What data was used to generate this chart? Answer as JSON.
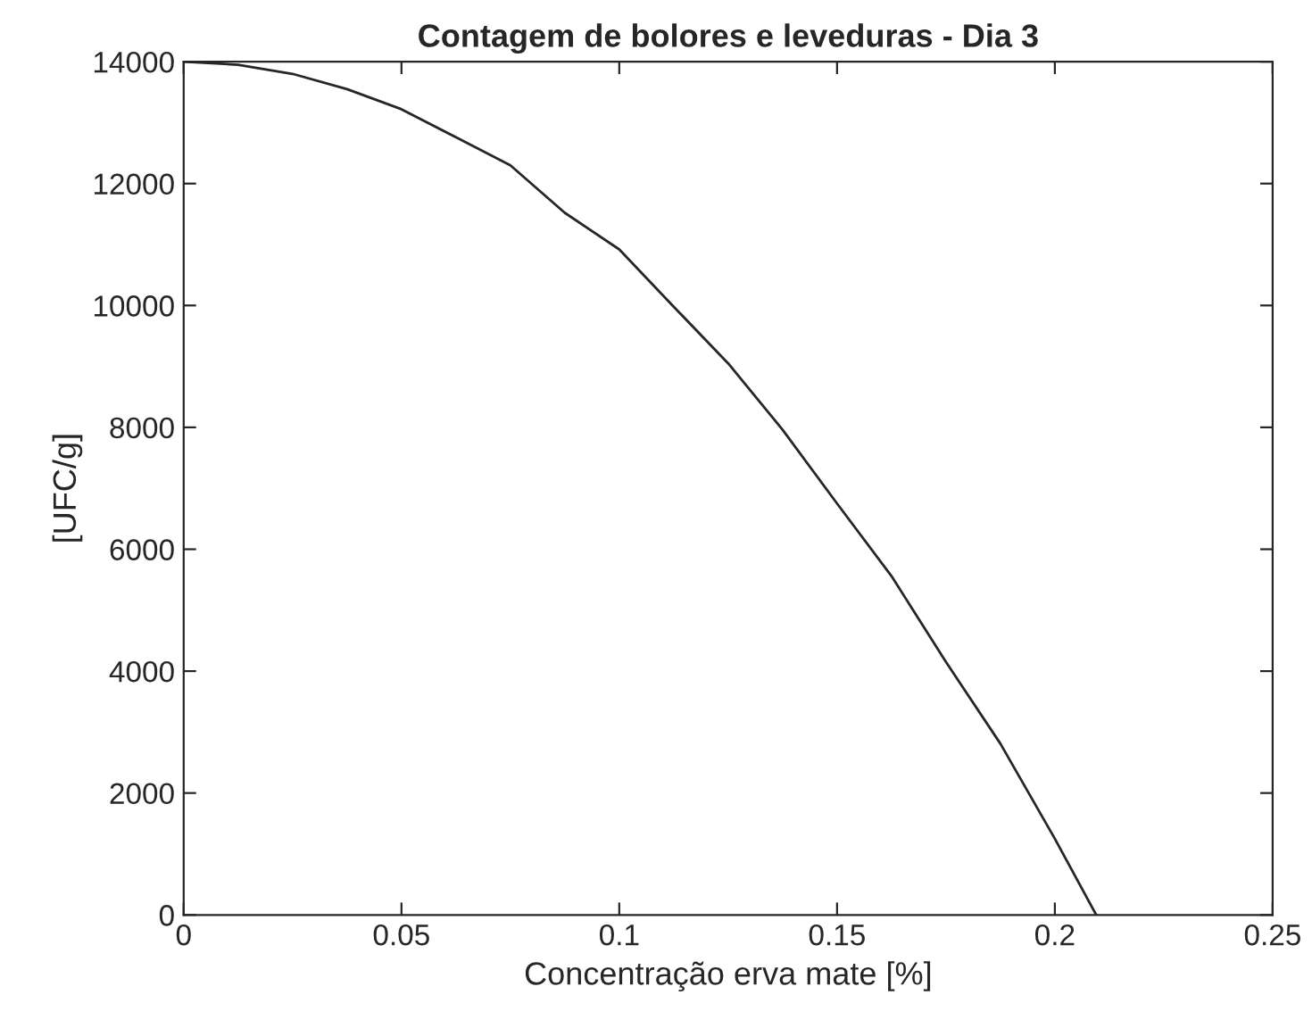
{
  "chart_data": {
    "type": "line",
    "title": "Contagem de bolores e leveduras - Dia 3",
    "xlabel": "Concentração erva mate [%]",
    "ylabel": "[UFC/g]",
    "x": [
      0,
      0.0125,
      0.025,
      0.0375,
      0.05,
      0.0625,
      0.075,
      0.0875,
      0.1,
      0.1125,
      0.125,
      0.1375,
      0.15,
      0.1625,
      0.175,
      0.1875,
      0.2,
      0.2095
    ],
    "series": [
      {
        "color": "#262626",
        "values": [
          14000,
          13950,
          13800,
          13550,
          13220,
          12760,
          12300,
          11520,
          10920,
          9980,
          9050,
          7960,
          6750,
          5560,
          4150,
          2810,
          1250,
          0
        ]
      }
    ],
    "xlim": [
      0,
      0.25
    ],
    "xticks": [
      0,
      0.05,
      0.1,
      0.15,
      0.2,
      0.25
    ],
    "ylim": [
      0,
      14000
    ],
    "yticks": [
      0,
      2000,
      4000,
      6000,
      8000,
      10000,
      12000,
      14000
    ],
    "grid": false,
    "legend": false,
    "marker": "none",
    "line_style": "solid"
  }
}
